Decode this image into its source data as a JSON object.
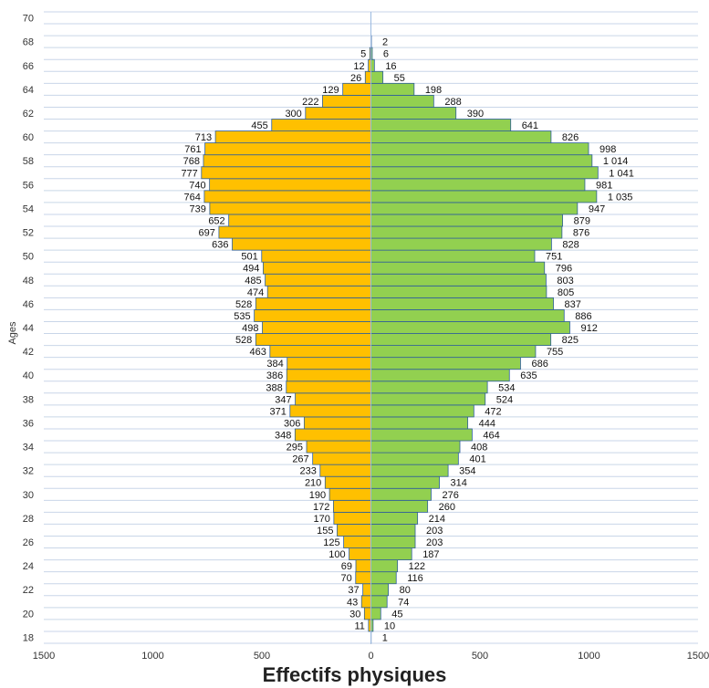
{
  "chart_data": {
    "type": "bar",
    "orientation": "horizontal",
    "subtype": "population-pyramid",
    "xlabel": "Effectifs physiques",
    "ylabel": "Ages",
    "ages": [
      18,
      19,
      20,
      21,
      22,
      23,
      24,
      25,
      26,
      27,
      28,
      29,
      30,
      31,
      32,
      33,
      34,
      35,
      36,
      37,
      38,
      39,
      40,
      41,
      42,
      43,
      44,
      45,
      46,
      47,
      48,
      49,
      50,
      51,
      52,
      53,
      54,
      55,
      56,
      57,
      58,
      59,
      60,
      61,
      62,
      63,
      64,
      65,
      66,
      67,
      68,
      69,
      70
    ],
    "series": [
      {
        "side": "left",
        "color": "#FFC000",
        "values": [
          0,
          11,
          30,
          43,
          37,
          70,
          69,
          100,
          125,
          155,
          170,
          172,
          190,
          210,
          233,
          267,
          295,
          348,
          306,
          371,
          347,
          388,
          386,
          384,
          463,
          528,
          498,
          535,
          528,
          474,
          485,
          494,
          501,
          636,
          697,
          652,
          739,
          764,
          740,
          777,
          768,
          761,
          713,
          455,
          300,
          222,
          129,
          26,
          12,
          5,
          0,
          0,
          0
        ]
      },
      {
        "side": "right",
        "color": "#92D050",
        "values": [
          1,
          10,
          45,
          74,
          80,
          116,
          122,
          187,
          203,
          203,
          214,
          260,
          276,
          314,
          354,
          401,
          408,
          464,
          444,
          472,
          524,
          534,
          635,
          686,
          755,
          825,
          912,
          886,
          837,
          805,
          803,
          796,
          751,
          828,
          876,
          879,
          947,
          1035,
          981,
          1041,
          1014,
          998,
          826,
          641,
          390,
          288,
          198,
          55,
          16,
          6,
          2,
          0,
          0
        ]
      }
    ],
    "xlim": [
      -1500,
      1500
    ],
    "xticks": [
      -1500,
      -1000,
      -500,
      0,
      500,
      1000,
      1500
    ],
    "xtick_labels": [
      "1500",
      "1000",
      "500",
      "0",
      "500",
      "1000",
      "1500"
    ],
    "ylim": [
      18,
      70
    ],
    "yticks": [
      18,
      20,
      22,
      24,
      26,
      28,
      30,
      32,
      34,
      36,
      38,
      40,
      42,
      44,
      46,
      48,
      50,
      52,
      54,
      56,
      58,
      60,
      62,
      64,
      66,
      68,
      70
    ],
    "grid": true,
    "legend": "none",
    "thousands_separator": " "
  }
}
